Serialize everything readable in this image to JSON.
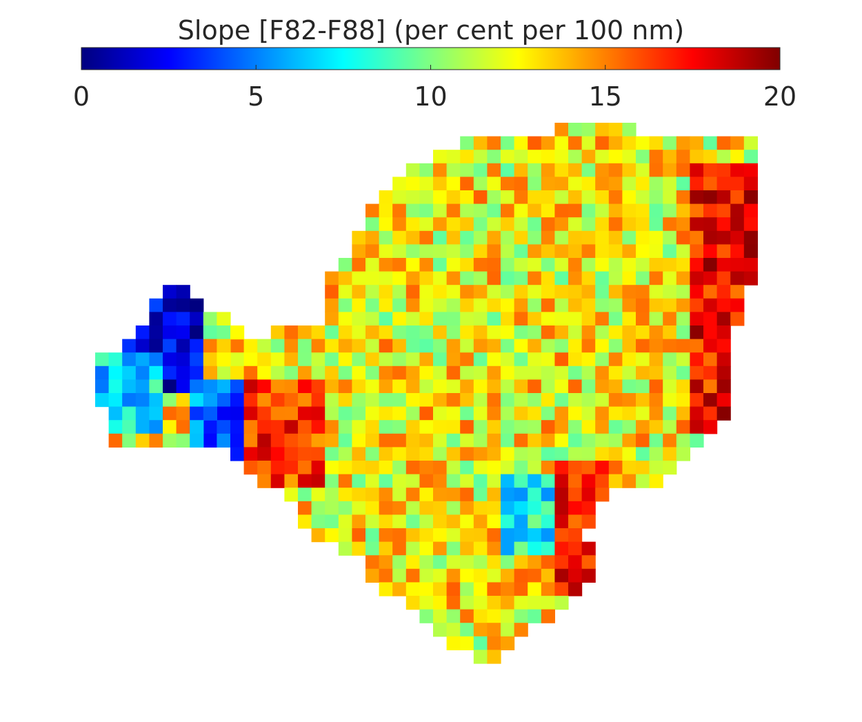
{
  "chart_data": {
    "type": "heatmap",
    "title": "Slope [F82-F88] (per cent per 100 nm)",
    "colormap": "jet",
    "clim": [
      0,
      20
    ],
    "colorbar": {
      "placement": "top",
      "ticks": [
        0,
        5,
        10,
        15,
        20
      ],
      "tick_labels": [
        "0",
        "5",
        "10",
        "15",
        "20"
      ]
    },
    "grid": false,
    "no_data_color": "#ffffff",
    "grid_cols": 49,
    "grid_rows": 40,
    "regions": [
      {
        "name": "main-body",
        "rows": [
          [
            0,
            34,
            39
          ],
          [
            1,
            27,
            48
          ],
          [
            2,
            25,
            48
          ],
          [
            3,
            23,
            48
          ],
          [
            4,
            22,
            48
          ],
          [
            5,
            21,
            48
          ],
          [
            6,
            20,
            48
          ],
          [
            7,
            20,
            48
          ],
          [
            8,
            19,
            48
          ],
          [
            9,
            19,
            48
          ],
          [
            10,
            18,
            48
          ],
          [
            11,
            17,
            48
          ],
          [
            12,
            17,
            47
          ],
          [
            13,
            17,
            47
          ],
          [
            14,
            17,
            47
          ],
          [
            15,
            13,
            46
          ],
          [
            16,
            10,
            46
          ],
          [
            17,
            10,
            46
          ],
          [
            18,
            9,
            46
          ],
          [
            19,
            9,
            46
          ],
          [
            20,
            9,
            46
          ],
          [
            21,
            9,
            46
          ],
          [
            22,
            8,
            45
          ],
          [
            23,
            8,
            44
          ],
          [
            24,
            10,
            43
          ],
          [
            25,
            11,
            42
          ],
          [
            26,
            12,
            41
          ],
          [
            27,
            14,
            37
          ],
          [
            28,
            15,
            36
          ],
          [
            29,
            15,
            36
          ],
          [
            30,
            16,
            35
          ],
          [
            31,
            18,
            36
          ],
          [
            32,
            20,
            36
          ],
          [
            33,
            20,
            36
          ],
          [
            34,
            21,
            35
          ],
          [
            35,
            23,
            34
          ],
          [
            36,
            24,
            33
          ],
          [
            37,
            25,
            31
          ],
          [
            38,
            26,
            30
          ],
          [
            39,
            28,
            29
          ]
        ]
      },
      {
        "name": "western-lobe",
        "rows": [
          [
            12,
            5,
            6
          ],
          [
            13,
            4,
            7
          ],
          [
            14,
            4,
            9
          ],
          [
            15,
            3,
            10
          ],
          [
            16,
            2,
            12
          ],
          [
            17,
            0,
            13
          ],
          [
            18,
            0,
            12
          ],
          [
            19,
            0,
            12
          ],
          [
            20,
            0,
            12
          ],
          [
            21,
            1,
            12
          ],
          [
            22,
            1,
            8
          ],
          [
            23,
            1,
            8
          ]
        ]
      }
    ],
    "zones": [
      {
        "name": "far-west-low-values",
        "rows": [
          12,
          19
        ],
        "cols": [
          1,
          7
        ],
        "value": 1.5
      },
      {
        "name": "west-tip-mixed",
        "rows": [
          17,
          22
        ],
        "cols": [
          0,
          4
        ],
        "value": 7.0
      },
      {
        "name": "channel-low-values",
        "rows": [
          19,
          24
        ],
        "cols": [
          7,
          10
        ],
        "value": 4.5
      },
      {
        "name": "channel-high-values",
        "rows": [
          19,
          26
        ],
        "cols": [
          11,
          16
        ],
        "value": 16.5
      },
      {
        "name": "east-edge-high-values",
        "rows": [
          3,
          22
        ],
        "cols": [
          44,
          48
        ],
        "value": 17.5
      },
      {
        "name": "southeast-edge-high-values",
        "rows": [
          25,
          34
        ],
        "cols": [
          34,
          37
        ],
        "value": 17.5
      },
      {
        "name": "interior-low-patches",
        "rows": [
          26,
          31
        ],
        "cols": [
          30,
          33
        ],
        "value": 7.5
      }
    ],
    "typical_value": 12.5
  }
}
